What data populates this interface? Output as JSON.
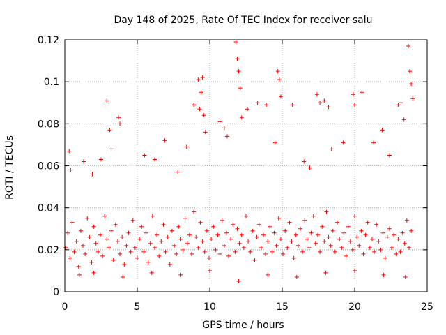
{
  "chart_data": {
    "type": "scatter",
    "title": "Day 148 of 2025, Rate Of TEC Index for receiver salu",
    "xlabel": "GPS time / hours",
    "ylabel": "ROTI / TECUs",
    "xlim": [
      0,
      25
    ],
    "ylim": [
      0,
      0.12
    ],
    "x_ticks": [
      0,
      5,
      10,
      15,
      20,
      25
    ],
    "x_tick_labels": [
      "0",
      "5",
      "10",
      "15",
      "20",
      "25"
    ],
    "y_ticks": [
      0,
      0.02,
      0.04,
      0.06,
      0.08,
      0.1,
      0.12
    ],
    "y_tick_labels": [
      "0",
      "0.02",
      "0.04",
      "0.06",
      "0.08",
      "0.1",
      "0.12"
    ],
    "grid": true,
    "marker": "+",
    "marker_color": "#ff0000",
    "series": [
      {
        "name": "ROTI",
        "x": [
          0.05,
          0.2,
          0.35,
          0.5,
          0.65,
          0.8,
          0.95,
          1.1,
          1.25,
          1.4,
          1.55,
          1.7,
          1.85,
          2.0,
          2.15,
          2.3,
          2.45,
          2.6,
          2.75,
          2.9,
          3.05,
          3.2,
          3.35,
          3.5,
          3.65,
          3.8,
          3.95,
          4.1,
          4.25,
          4.4,
          4.55,
          4.7,
          4.85,
          5.0,
          5.15,
          5.3,
          5.45,
          5.6,
          5.75,
          5.9,
          6.05,
          6.2,
          6.35,
          6.5,
          6.65,
          6.8,
          6.95,
          7.1,
          7.25,
          7.4,
          7.55,
          7.7,
          7.85,
          8.0,
          8.15,
          8.3,
          8.45,
          8.6,
          8.75,
          8.9,
          9.05,
          9.2,
          9.35,
          9.5,
          9.65,
          9.8,
          9.95,
          10.1,
          10.25,
          10.4,
          10.55,
          10.7,
          10.85,
          11.0,
          11.15,
          11.3,
          11.45,
          11.6,
          11.75,
          11.9,
          12.05,
          12.2,
          12.35,
          12.5,
          12.65,
          12.8,
          12.95,
          13.1,
          13.25,
          13.4,
          13.55,
          13.7,
          13.85,
          14.0,
          14.15,
          14.3,
          14.45,
          14.6,
          14.75,
          14.9,
          15.05,
          15.2,
          15.35,
          15.5,
          15.65,
          15.8,
          15.95,
          16.1,
          16.25,
          16.4,
          16.55,
          16.7,
          16.85,
          17.0,
          17.15,
          17.3,
          17.45,
          17.6,
          17.75,
          17.9,
          18.05,
          18.2,
          18.35,
          18.5,
          18.65,
          18.8,
          18.95,
          19.1,
          19.25,
          19.4,
          19.55,
          19.7,
          19.85,
          20.0,
          20.15,
          20.3,
          20.45,
          20.6,
          20.75,
          20.9,
          21.05,
          21.2,
          21.35,
          21.5,
          21.65,
          21.8,
          21.95,
          22.1,
          22.25,
          22.4,
          22.55,
          22.7,
          22.85,
          23.0,
          23.15,
          23.3,
          23.45,
          23.6,
          23.75,
          23.9,
          0.3,
          0.4,
          1.3,
          1.9,
          2.5,
          2.9,
          3.1,
          3.2,
          3.7,
          3.8,
          5.5,
          6.2,
          6.9,
          7.8,
          8.4,
          8.9,
          9.2,
          9.3,
          9.4,
          9.5,
          9.6,
          9.7,
          10.7,
          11.0,
          11.2,
          11.8,
          11.9,
          12.0,
          12.1,
          12.2,
          12.6,
          13.3,
          13.9,
          14.5,
          14.7,
          14.8,
          14.9,
          15.7,
          16.5,
          16.9,
          17.4,
          17.6,
          17.9,
          18.2,
          18.4,
          19.2,
          19.9,
          20.0,
          20.5,
          21.3,
          21.9,
          22.4,
          23.0,
          23.2,
          23.4,
          23.7,
          23.8,
          23.9,
          24.0,
          1.0,
          2.0,
          4.0,
          6.0,
          8.0,
          10.0,
          12.0,
          14.0,
          16.0,
          18.0,
          20.0,
          22.0,
          23.5
        ],
        "y": [
          0.021,
          0.028,
          0.016,
          0.033,
          0.019,
          0.024,
          0.012,
          0.029,
          0.022,
          0.018,
          0.035,
          0.026,
          0.014,
          0.031,
          0.023,
          0.019,
          0.027,
          0.017,
          0.036,
          0.025,
          0.021,
          0.029,
          0.015,
          0.032,
          0.024,
          0.018,
          0.026,
          0.013,
          0.022,
          0.028,
          0.019,
          0.034,
          0.021,
          0.016,
          0.025,
          0.031,
          0.019,
          0.028,
          0.014,
          0.023,
          0.036,
          0.021,
          0.027,
          0.017,
          0.024,
          0.032,
          0.019,
          0.026,
          0.013,
          0.029,
          0.022,
          0.018,
          0.031,
          0.025,
          0.02,
          0.035,
          0.023,
          0.027,
          0.018,
          0.038,
          0.026,
          0.021,
          0.033,
          0.024,
          0.019,
          0.029,
          0.016,
          0.025,
          0.031,
          0.02,
          0.027,
          0.018,
          0.034,
          0.022,
          0.028,
          0.017,
          0.025,
          0.032,
          0.019,
          0.03,
          0.023,
          0.027,
          0.021,
          0.036,
          0.024,
          0.019,
          0.029,
          0.015,
          0.026,
          0.032,
          0.021,
          0.027,
          0.018,
          0.024,
          0.031,
          0.019,
          0.028,
          0.022,
          0.035,
          0.025,
          0.018,
          0.029,
          0.021,
          0.033,
          0.024,
          0.016,
          0.027,
          0.022,
          0.03,
          0.019,
          0.034,
          0.025,
          0.021,
          0.028,
          0.036,
          0.023,
          0.027,
          0.019,
          0.031,
          0.024,
          0.038,
          0.026,
          0.022,
          0.029,
          0.019,
          0.033,
          0.025,
          0.021,
          0.028,
          0.017,
          0.031,
          0.024,
          0.02,
          0.036,
          0.026,
          0.022,
          0.029,
          0.018,
          0.027,
          0.033,
          0.021,
          0.025,
          0.019,
          0.032,
          0.024,
          0.02,
          0.028,
          0.016,
          0.026,
          0.03,
          0.021,
          0.027,
          0.018,
          0.025,
          0.019,
          0.028,
          0.023,
          0.034,
          0.021,
          0.029,
          0.067,
          0.058,
          0.062,
          0.056,
          0.063,
          0.091,
          0.077,
          0.068,
          0.083,
          0.08,
          0.065,
          0.063,
          0.072,
          0.057,
          0.069,
          0.089,
          0.101,
          0.087,
          0.095,
          0.102,
          0.084,
          0.076,
          0.081,
          0.078,
          0.074,
          0.119,
          0.111,
          0.105,
          0.097,
          0.083,
          0.087,
          0.09,
          0.089,
          0.071,
          0.105,
          0.101,
          0.093,
          0.089,
          0.062,
          0.059,
          0.094,
          0.09,
          0.091,
          0.088,
          0.068,
          0.071,
          0.094,
          0.089,
          0.095,
          0.071,
          0.077,
          0.065,
          0.089,
          0.09,
          0.082,
          0.117,
          0.105,
          0.099,
          0.092,
          0.008,
          0.009,
          0.007,
          0.009,
          0.008,
          0.01,
          0.005,
          0.008,
          0.007,
          0.009,
          0.01,
          0.008,
          0.007
        ]
      }
    ]
  }
}
